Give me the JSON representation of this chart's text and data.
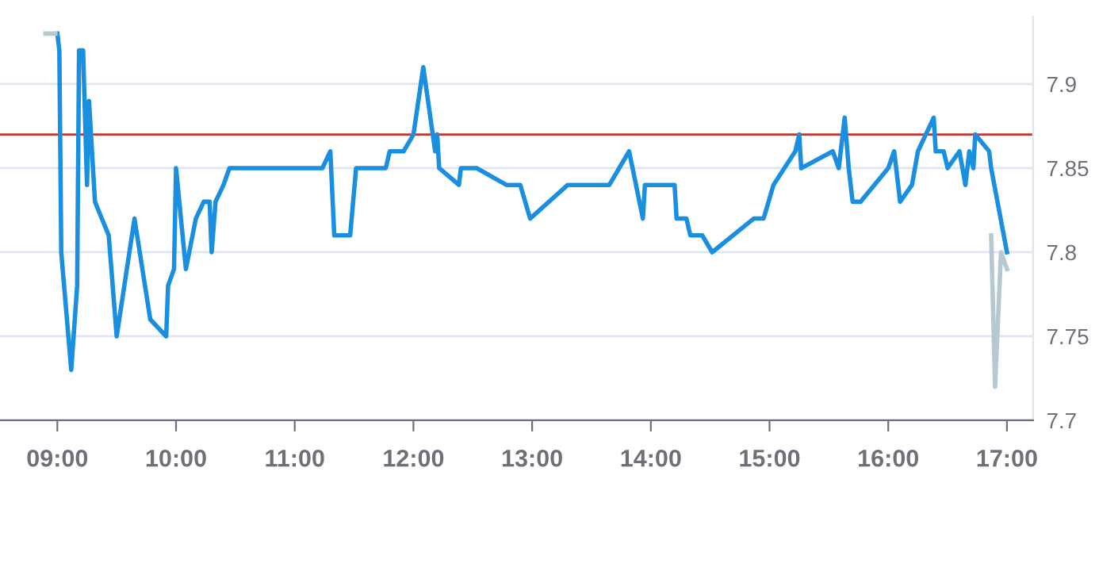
{
  "chart_data": {
    "type": "line",
    "series": [
      {
        "color": "#b8c8d0",
        "x": [
          8.9,
          8.983,
          13.0,
          16.867,
          16.9,
          16.95,
          17.0
        ],
        "values": [
          7.93,
          7.93,
          null,
          7.81,
          7.72,
          7.8,
          7.79
        ]
      },
      {
        "color": "#1a8fe0",
        "x": [
          9.0,
          9.017,
          9.033,
          9.117,
          9.167,
          9.183,
          9.217,
          9.25,
          9.267,
          9.317,
          9.433,
          9.5,
          9.65,
          9.783,
          9.917,
          9.933,
          9.983,
          10.0,
          10.083,
          10.167,
          10.233,
          10.283,
          10.3,
          10.333,
          10.4,
          10.45,
          11.233,
          11.3,
          11.333,
          11.467,
          11.517,
          11.767,
          11.8,
          11.917,
          12.0,
          12.083,
          12.183,
          12.2,
          12.217,
          12.383,
          12.4,
          12.533,
          12.783,
          12.9,
          12.983,
          13.3,
          13.65,
          13.817,
          13.933,
          13.95,
          14.2,
          14.217,
          14.3,
          14.333,
          14.433,
          14.517,
          14.867,
          14.95,
          15.033,
          15.217,
          15.25,
          15.267,
          15.533,
          15.583,
          15.633,
          15.667,
          15.7,
          15.767,
          16.0,
          16.05,
          16.1,
          16.2,
          16.25,
          16.383,
          16.4,
          16.467,
          16.5,
          16.6,
          16.65,
          16.683,
          16.717,
          16.733,
          16.85,
          16.867,
          17.0
        ],
        "values": [
          7.93,
          7.92,
          7.8,
          7.73,
          7.78,
          7.92,
          7.92,
          7.84,
          7.89,
          7.83,
          7.81,
          7.75,
          7.82,
          7.76,
          7.75,
          7.78,
          7.79,
          7.85,
          7.79,
          7.82,
          7.83,
          7.83,
          7.8,
          7.83,
          7.84,
          7.85,
          7.85,
          7.86,
          7.81,
          7.81,
          7.85,
          7.85,
          7.86,
          7.86,
          7.87,
          7.91,
          7.86,
          7.87,
          7.85,
          7.84,
          7.85,
          7.85,
          7.84,
          7.84,
          7.82,
          7.84,
          7.84,
          7.86,
          7.82,
          7.84,
          7.84,
          7.82,
          7.82,
          7.81,
          7.81,
          7.8,
          7.82,
          7.82,
          7.84,
          7.86,
          7.87,
          7.85,
          7.86,
          7.85,
          7.88,
          7.85,
          7.83,
          7.83,
          7.85,
          7.86,
          7.83,
          7.84,
          7.86,
          7.88,
          7.86,
          7.86,
          7.85,
          7.86,
          7.84,
          7.86,
          7.85,
          7.87,
          7.86,
          7.85,
          7.8
        ]
      }
    ],
    "xlim": [
      8.517,
      17.22
    ],
    "xticks": [
      {
        "value": 9,
        "label": "09:00"
      },
      {
        "value": 10,
        "label": "10:00"
      },
      {
        "value": 11,
        "label": "11:00"
      },
      {
        "value": 12,
        "label": "12:00"
      },
      {
        "value": 13,
        "label": "13:00"
      },
      {
        "value": 14,
        "label": "14:00"
      },
      {
        "value": 15,
        "label": "15:00"
      },
      {
        "value": 16,
        "label": "16:00"
      },
      {
        "value": 17,
        "label": "17:00"
      }
    ],
    "ylim": [
      7.7,
      7.94
    ],
    "yticks": [
      {
        "value": 7.7,
        "label": "7.7"
      },
      {
        "value": 7.75,
        "label": "7.75"
      },
      {
        "value": 7.8,
        "label": "7.8"
      },
      {
        "value": 7.85,
        "label": "7.85"
      },
      {
        "value": 7.9,
        "label": "7.9"
      }
    ],
    "ref_lines": [
      {
        "axis": "y",
        "value": 7.87,
        "color": "#c23531"
      }
    ],
    "grid": "y",
    "legend": false,
    "marker": "none",
    "line_style": "solid"
  }
}
